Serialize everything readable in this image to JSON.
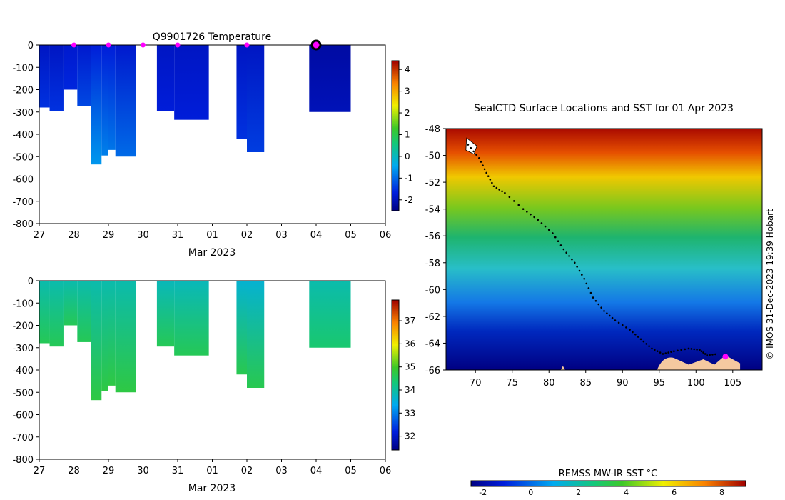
{
  "chart_data": [
    {
      "type": "heatmap",
      "id": "temperature-section",
      "title": "Q9901726  Temperature",
      "xlabel": "Mar 2023",
      "x_ticks": [
        "27",
        "28",
        "29",
        "30",
        "31",
        "01",
        "02",
        "03",
        "04",
        "05",
        "06"
      ],
      "y_ticks": [
        "0",
        "-100",
        "-200",
        "-300",
        "-400",
        "-500",
        "-600",
        "-700",
        "-800"
      ],
      "ylim": [
        -800,
        0
      ],
      "colorbar": {
        "min": -2.5,
        "max": 4.4,
        "ticks": [
          "-2",
          "-1",
          "0",
          "1",
          "2",
          "3",
          "4"
        ]
      },
      "profile_markers_days": [
        28.0,
        29.0,
        30.0,
        31.0,
        33.0
      ],
      "latest_profile_day": 35.0,
      "profiles": [
        {
          "start": 27.0,
          "end": 27.3,
          "depth": 280,
          "surface": -1.9,
          "deep": -1.5
        },
        {
          "start": 27.3,
          "end": 27.7,
          "depth": 295,
          "surface": -1.9,
          "deep": -1.5
        },
        {
          "start": 27.7,
          "end": 28.1,
          "depth": 200,
          "surface": -1.8,
          "deep": -1.6
        },
        {
          "start": 28.1,
          "end": 28.5,
          "depth": 275,
          "surface": -1.8,
          "deep": -1.3
        },
        {
          "start": 28.5,
          "end": 28.8,
          "depth": 535,
          "surface": -1.7,
          "deep": -0.6
        },
        {
          "start": 28.8,
          "end": 29.0,
          "depth": 495,
          "surface": -1.7,
          "deep": -0.8
        },
        {
          "start": 29.0,
          "end": 29.2,
          "depth": 470,
          "surface": -1.7,
          "deep": -0.9
        },
        {
          "start": 29.2,
          "end": 29.8,
          "depth": 500,
          "surface": -1.8,
          "deep": -1.0
        },
        {
          "start": 30.4,
          "end": 30.9,
          "depth": 295,
          "surface": -1.9,
          "deep": -1.7
        },
        {
          "start": 30.9,
          "end": 31.9,
          "depth": 335,
          "surface": -1.9,
          "deep": -1.7
        },
        {
          "start": 32.7,
          "end": 33.0,
          "depth": 420,
          "surface": -1.9,
          "deep": -1.5
        },
        {
          "start": 33.0,
          "end": 33.5,
          "depth": 480,
          "surface": -1.9,
          "deep": -1.4
        },
        {
          "start": 34.8,
          "end": 36.0,
          "depth": 300,
          "surface": -2.2,
          "deep": -2.0
        }
      ]
    },
    {
      "type": "heatmap",
      "id": "salinity-section",
      "title": "",
      "xlabel": "Mar 2023",
      "x_ticks": [
        "27",
        "28",
        "29",
        "30",
        "31",
        "01",
        "02",
        "03",
        "04",
        "05",
        "06"
      ],
      "y_ticks": [
        "0",
        "-100",
        "-200",
        "-300",
        "-400",
        "-500",
        "-600",
        "-700",
        "-800"
      ],
      "ylim": [
        -800,
        0
      ],
      "colorbar": {
        "min": 31.4,
        "max": 37.9,
        "ticks": [
          "32",
          "33",
          "34",
          "35",
          "36",
          "37"
        ]
      },
      "profiles": [
        {
          "start": 27.0,
          "end": 27.3,
          "depth": 280,
          "surface": 33.9,
          "deep": 34.6
        },
        {
          "start": 27.3,
          "end": 27.7,
          "depth": 295,
          "surface": 33.9,
          "deep": 34.6
        },
        {
          "start": 27.7,
          "end": 28.1,
          "depth": 200,
          "surface": 33.9,
          "deep": 34.6
        },
        {
          "start": 28.1,
          "end": 28.5,
          "depth": 275,
          "surface": 33.9,
          "deep": 34.6
        },
        {
          "start": 28.5,
          "end": 28.8,
          "depth": 535,
          "surface": 33.9,
          "deep": 34.75
        },
        {
          "start": 28.8,
          "end": 29.0,
          "depth": 495,
          "surface": 33.9,
          "deep": 34.75
        },
        {
          "start": 29.0,
          "end": 29.2,
          "depth": 470,
          "surface": 33.9,
          "deep": 34.75
        },
        {
          "start": 29.2,
          "end": 29.8,
          "depth": 500,
          "surface": 33.9,
          "deep": 34.75
        },
        {
          "start": 30.4,
          "end": 30.9,
          "depth": 295,
          "surface": 33.8,
          "deep": 34.6
        },
        {
          "start": 30.9,
          "end": 31.9,
          "depth": 335,
          "surface": 33.8,
          "deep": 34.6
        },
        {
          "start": 32.7,
          "end": 33.0,
          "depth": 420,
          "surface": 33.6,
          "deep": 34.65
        },
        {
          "start": 33.0,
          "end": 33.5,
          "depth": 480,
          "surface": 33.6,
          "deep": 34.65
        },
        {
          "start": 34.8,
          "end": 36.0,
          "depth": 300,
          "surface": 33.9,
          "deep": 34.4
        }
      ]
    },
    {
      "type": "heatmap",
      "id": "sst-map",
      "title": "SealCTD Surface Locations and SST for 01 Apr 2023",
      "x_ticks": [
        "70",
        "75",
        "80",
        "85",
        "90",
        "95",
        "100",
        "105"
      ],
      "x_tick_values": [
        70,
        75,
        80,
        85,
        90,
        95,
        100,
        105
      ],
      "y_ticks": [
        "-48",
        "-50",
        "-52",
        "-54",
        "-56",
        "-58",
        "-60",
        "-62",
        "-64",
        "-66"
      ],
      "y_tick_values": [
        -48,
        -50,
        -52,
        -54,
        -56,
        -58,
        -60,
        -62,
        -64,
        -66
      ],
      "xlim": [
        66,
        109
      ],
      "ylim": [
        -66,
        -48
      ],
      "track": [
        [
          69.0,
          -49.2
        ],
        [
          70.5,
          -50.2
        ],
        [
          71.5,
          -51.3
        ],
        [
          72.5,
          -52.3
        ],
        [
          74.0,
          -52.8
        ],
        [
          76.5,
          -54.0
        ],
        [
          78.5,
          -54.8
        ],
        [
          80.5,
          -55.8
        ],
        [
          82.0,
          -57.0
        ],
        [
          83.5,
          -58.0
        ],
        [
          84.8,
          -59.2
        ],
        [
          86.0,
          -60.6
        ],
        [
          87.5,
          -61.6
        ],
        [
          89.0,
          -62.3
        ],
        [
          91.0,
          -63.0
        ],
        [
          92.5,
          -63.7
        ],
        [
          94.0,
          -64.4
        ],
        [
          95.5,
          -64.8
        ],
        [
          97.0,
          -64.6
        ],
        [
          99.0,
          -64.4
        ],
        [
          100.5,
          -64.5
        ],
        [
          101.5,
          -64.9
        ],
        [
          103.0,
          -64.8
        ]
      ],
      "latest_position": [
        104.0,
        -65.0
      ],
      "colorbar_label": "REMSS MW-IR SST °C",
      "colorbar": {
        "min": -2.5,
        "max": 9.0,
        "ticks": [
          "-2",
          "0",
          "2",
          "4",
          "6",
          "8"
        ]
      }
    }
  ],
  "credit": "© IMOS 31-Dec-2023 19:39 Hobart"
}
